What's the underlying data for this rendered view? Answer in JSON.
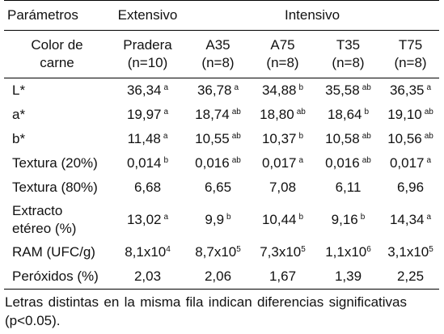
{
  "header": {
    "parametros": "Parámetros",
    "extensivo": "Extensivo",
    "intensivo": "Intensivo",
    "color_line1": "Color de",
    "color_line2": "carne",
    "groups": [
      {
        "name": "Pradera",
        "n": "(n=10)"
      },
      {
        "name": "A35",
        "n": "(n=8)"
      },
      {
        "name": "A75",
        "n": "(n=8)"
      },
      {
        "name": "T35",
        "n": "(n=8)"
      },
      {
        "name": "T75",
        "n": "(n=8)"
      }
    ]
  },
  "rows": [
    {
      "label": "L*",
      "cells": [
        {
          "v": "36,34",
          "s": "a"
        },
        {
          "v": "36,78",
          "s": "a"
        },
        {
          "v": "34,88",
          "s": "b"
        },
        {
          "v": "35,58",
          "s": "ab"
        },
        {
          "v": "36,35",
          "s": "a"
        }
      ]
    },
    {
      "label": "a*",
      "cells": [
        {
          "v": "19,97",
          "s": "a"
        },
        {
          "v": "18,74",
          "s": "ab"
        },
        {
          "v": "18,80",
          "s": "ab"
        },
        {
          "v": "18,64",
          "s": "b"
        },
        {
          "v": "19,10",
          "s": "ab"
        }
      ]
    },
    {
      "label": "b*",
      "cells": [
        {
          "v": "11,48",
          "s": "a"
        },
        {
          "v": "10,55",
          "s": "ab"
        },
        {
          "v": "10,37",
          "s": "b"
        },
        {
          "v": "10,58",
          "s": "ab"
        },
        {
          "v": "10,56",
          "s": "ab"
        }
      ]
    },
    {
      "label": "Textura (20%)",
      "cells": [
        {
          "v": "0,014",
          "s": "b"
        },
        {
          "v": "0,016",
          "s": "ab"
        },
        {
          "v": "0,017",
          "s": "a"
        },
        {
          "v": "0,016",
          "s": "ab"
        },
        {
          "v": "0,017",
          "s": "a"
        }
      ]
    },
    {
      "label": "Textura (80%)",
      "cells": [
        {
          "v": "6,68",
          "s": ""
        },
        {
          "v": "6,65",
          "s": ""
        },
        {
          "v": "7,08",
          "s": ""
        },
        {
          "v": "6,11",
          "s": ""
        },
        {
          "v": "6,96",
          "s": ""
        }
      ]
    },
    {
      "label": "Extracto",
      "label2": "etéreo (%)",
      "cells": [
        {
          "v": "13,02",
          "s": "a"
        },
        {
          "v": "9,9",
          "s": "b"
        },
        {
          "v": "10,44",
          "s": "b"
        },
        {
          "v": "9,16",
          "s": "b"
        },
        {
          "v": "14,34",
          "s": "a"
        }
      ]
    },
    {
      "label": "RAM (UFC/g)",
      "cells": [
        {
          "v": "8,1x10",
          "e": "4"
        },
        {
          "v": "8,7x10",
          "e": "5"
        },
        {
          "v": "7,3x10",
          "e": "5"
        },
        {
          "v": "1,1x10",
          "e": "6"
        },
        {
          "v": "3,1x10",
          "e": "5"
        }
      ]
    },
    {
      "label": "Peróxidos (%)",
      "cells": [
        {
          "v": "2,03",
          "s": ""
        },
        {
          "v": "2,06",
          "s": ""
        },
        {
          "v": "1,67",
          "s": ""
        },
        {
          "v": "1,39",
          "s": ""
        },
        {
          "v": "2,25",
          "s": ""
        }
      ]
    }
  ],
  "footnote": "Letras distintas en la misma fila indican diferencias significativas (p<0.05)."
}
